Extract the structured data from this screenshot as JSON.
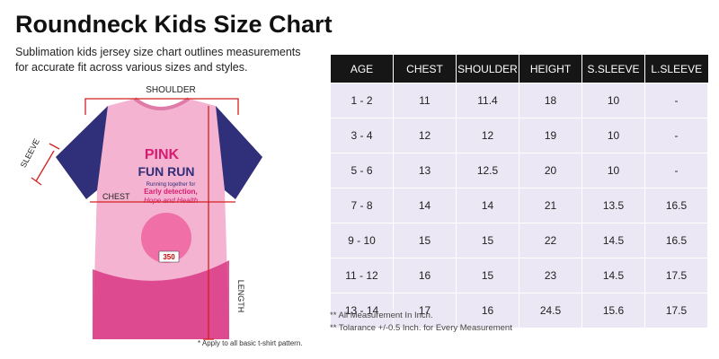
{
  "header": {
    "title": "Roundneck Kids Size Chart",
    "description": "Sublimation kids jersey size chart outlines measurements for accurate fit across various sizes and styles."
  },
  "illustration": {
    "labels": {
      "shoulder": "SHOULDER",
      "sleeve": "SLEEVE",
      "chest": "CHEST",
      "length": "LENGTH"
    },
    "print": {
      "line1": "PINK",
      "line2": "FUN RUN",
      "tagline": "Running together for",
      "line3": "Early detection,",
      "line4": "Hope and Health",
      "bib": "350"
    },
    "footnote": "* Apply to all basic t-shirt pattern."
  },
  "table": {
    "columns": [
      "AGE",
      "CHEST",
      "SHOULDER",
      "HEIGHT",
      "S.SLEEVE",
      "L.SLEEVE"
    ],
    "rows": [
      [
        "1 - 2",
        "11",
        "11.4",
        "18",
        "10",
        "-"
      ],
      [
        "3 - 4",
        "12",
        "12",
        "19",
        "10",
        "-"
      ],
      [
        "5 - 6",
        "13",
        "12.5",
        "20",
        "10",
        "-"
      ],
      [
        "7 - 8",
        "14",
        "14",
        "21",
        "13.5",
        "16.5"
      ],
      [
        "9 - 10",
        "15",
        "15",
        "22",
        "14.5",
        "16.5"
      ],
      [
        "11 - 12",
        "16",
        "15",
        "23",
        "14.5",
        "17.5"
      ],
      [
        "13 - 14",
        "17",
        "16",
        "24.5",
        "15.6",
        "17.5"
      ]
    ]
  },
  "notes": [
    "** All Measurement In Inch.",
    "** Tolarance +/-0.5 Inch. for Every Measurement"
  ]
}
